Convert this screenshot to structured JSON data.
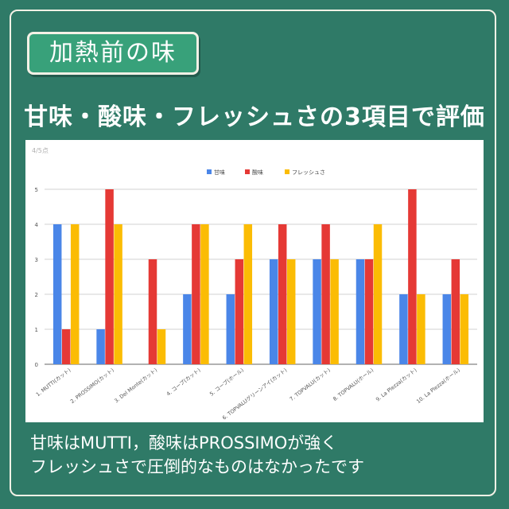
{
  "badge": "加熱前の味",
  "headline": "甘味・酸味・フレッシュさの3項目で評価",
  "caption": {
    "line1": "甘味はMUTTI，酸味はPROSSIMOが強く",
    "line2": "フレッシュさで圧倒的なものはなかったです"
  },
  "chart_data": {
    "type": "bar",
    "title": "",
    "corner_label": "4/5点",
    "ylim": [
      0,
      5
    ],
    "yticks": [
      0,
      1,
      2,
      3,
      4,
      5
    ],
    "grid": true,
    "legend_position": "top",
    "categories": [
      "1. MUTTI(カット)",
      "2. PROSSIMO(カット)",
      "3. Del Monte(カット)",
      "4. コープ(カット)",
      "5. コープ(ホール)",
      "6. TOPVALUグリーンアイ(カット)",
      "7. TOPVALU(カット)",
      "8. TOPVALU(ホール)",
      "9. La Plezza(カット)",
      "10. La Plezza(ホール)"
    ],
    "series": [
      {
        "name": "甘味",
        "color": "#4a86e8",
        "values": [
          4,
          1,
          0,
          2,
          2,
          3,
          3,
          3,
          2,
          2
        ]
      },
      {
        "name": "酸味",
        "color": "#e53935",
        "values": [
          1,
          5,
          3,
          4,
          3,
          4,
          4,
          3,
          5,
          3
        ]
      },
      {
        "name": "フレッシュさ",
        "color": "#fbbc04",
        "values": [
          4,
          4,
          1,
          4,
          4,
          3,
          3,
          4,
          2,
          2
        ]
      }
    ]
  }
}
